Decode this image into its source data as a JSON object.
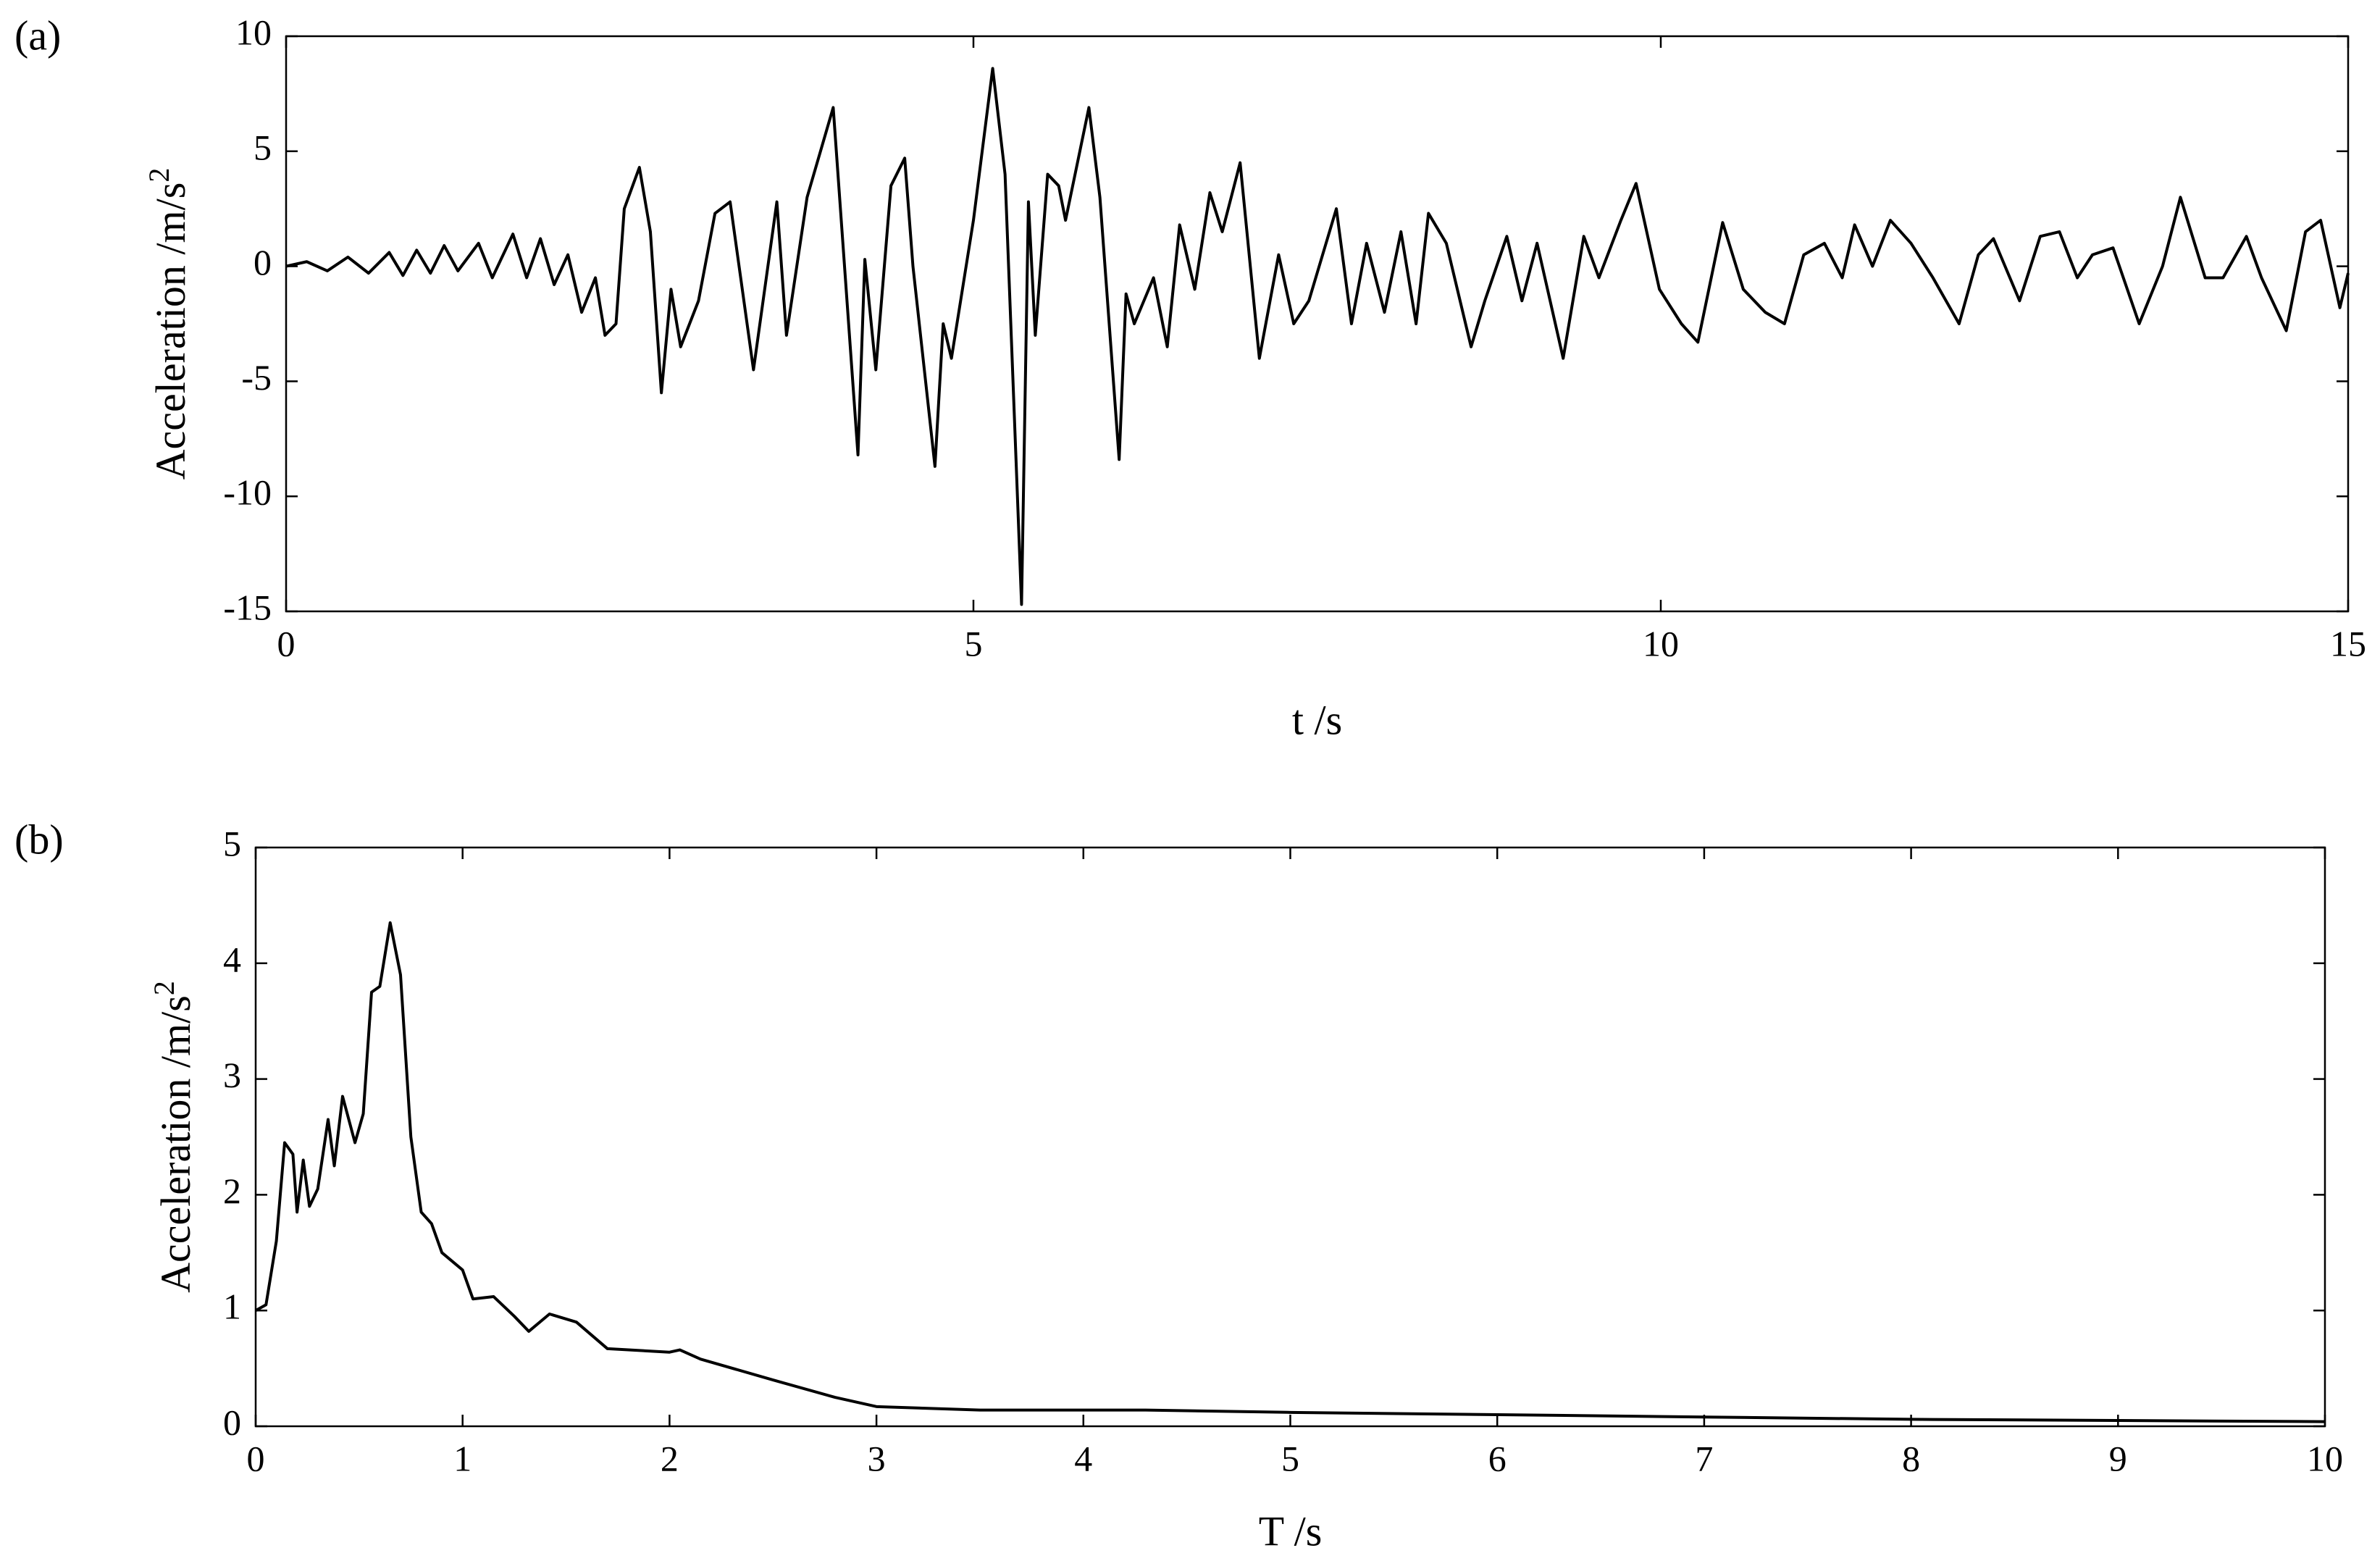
{
  "chart_data": [
    {
      "type": "line",
      "panel_label": "(a)",
      "xlabel": "t /s",
      "ylabel": "Acceleration /m/s",
      "ylabel_superscript": "2",
      "color": "#000000",
      "xlim": [
        0,
        15
      ],
      "xticks": [
        0,
        5,
        10,
        15
      ],
      "ylim": [
        -15,
        10
      ],
      "yticks": [
        -15,
        -10,
        -5,
        0,
        5,
        10
      ],
      "x": [
        0,
        0.15,
        0.3,
        0.45,
        0.6,
        0.75,
        0.85,
        0.95,
        1.05,
        1.15,
        1.25,
        1.4,
        1.5,
        1.65,
        1.75,
        1.85,
        1.95,
        2.05,
        2.15,
        2.25,
        2.32,
        2.4,
        2.46,
        2.57,
        2.65,
        2.73,
        2.8,
        2.87,
        3.0,
        3.12,
        3.23,
        3.4,
        3.57,
        3.64,
        3.79,
        3.98,
        4.16,
        4.21,
        4.29,
        4.4,
        4.5,
        4.56,
        4.72,
        4.78,
        4.84,
        5.0,
        5.14,
        5.23,
        5.32,
        5.35,
        5.4,
        5.45,
        5.54,
        5.62,
        5.67,
        5.84,
        5.92,
        6.06,
        6.11,
        6.17,
        6.31,
        6.41,
        6.5,
        6.61,
        6.72,
        6.81,
        6.94,
        7.08,
        7.22,
        7.33,
        7.44,
        7.64,
        7.75,
        7.86,
        7.99,
        8.11,
        8.22,
        8.31,
        8.44,
        8.62,
        8.72,
        8.88,
        8.99,
        9.1,
        9.29,
        9.44,
        9.55,
        9.71,
        9.82,
        9.99,
        10.15,
        10.27,
        10.45,
        10.6,
        10.76,
        10.9,
        11.04,
        11.19,
        11.32,
        11.41,
        11.54,
        11.67,
        11.82,
        11.98,
        12.17,
        12.31,
        12.42,
        12.61,
        12.76,
        12.9,
        13.03,
        13.14,
        13.29,
        13.48,
        13.65,
        13.78,
        13.96,
        14.09,
        14.26,
        14.37,
        14.55,
        14.69,
        14.8,
        14.94,
        15
      ],
      "values": [
        0,
        0.2,
        -0.2,
        0.4,
        -0.3,
        0.6,
        -0.4,
        0.7,
        -0.3,
        0.9,
        -0.2,
        1.0,
        -0.5,
        1.4,
        -0.5,
        1.2,
        -0.8,
        0.5,
        -2.0,
        -0.5,
        -3.0,
        -2.5,
        2.5,
        4.3,
        1.5,
        -5.5,
        -1.0,
        -3.5,
        -1.5,
        2.3,
        2.8,
        -4.5,
        2.8,
        -3.0,
        3.0,
        6.9,
        -8.2,
        0.3,
        -4.5,
        3.5,
        4.7,
        0,
        -8.7,
        -2.5,
        -4.0,
        2.0,
        8.6,
        4.0,
        -10.0,
        -14.7,
        2.8,
        -3.0,
        4.0,
        3.5,
        2.0,
        6.9,
        3.0,
        -8.4,
        -1.2,
        -2.5,
        -0.5,
        -3.5,
        1.8,
        -1.0,
        3.2,
        1.5,
        4.5,
        -4.0,
        0.5,
        -2.5,
        -1.5,
        2.5,
        -2.5,
        1.0,
        -2.0,
        1.5,
        -2.5,
        2.3,
        1.0,
        -3.5,
        -1.5,
        1.3,
        -1.5,
        1.0,
        -4.0,
        1.3,
        -0.5,
        2.0,
        3.6,
        -1.0,
        -2.5,
        -3.3,
        1.9,
        -1.0,
        -2.0,
        -2.5,
        0.5,
        1.0,
        -0.5,
        1.8,
        0,
        2.0,
        1.0,
        -0.5,
        -2.5,
        0.5,
        1.2,
        -1.5,
        1.3,
        1.5,
        -0.5,
        0.5,
        0.8,
        -2.5,
        0,
        3.0,
        -0.5,
        -0.5,
        1.3,
        -0.5,
        -2.8,
        1.5,
        2.0,
        -1.8,
        -0.3
      ]
    },
    {
      "type": "line",
      "panel_label": "(b)",
      "xlabel": "T /s",
      "ylabel": "Acceleration /m/s",
      "ylabel_superscript": "2",
      "color": "#000000",
      "xlim": [
        0,
        10
      ],
      "xticks": [
        0,
        1,
        2,
        3,
        4,
        5,
        6,
        7,
        8,
        9,
        10
      ],
      "ylim": [
        0,
        5
      ],
      "yticks": [
        0,
        1,
        2,
        3,
        4,
        5
      ],
      "x": [
        0,
        0.05,
        0.1,
        0.14,
        0.18,
        0.2,
        0.23,
        0.26,
        0.3,
        0.35,
        0.38,
        0.42,
        0.48,
        0.52,
        0.56,
        0.6,
        0.65,
        0.7,
        0.75,
        0.8,
        0.85,
        0.9,
        1.0,
        1.05,
        1.15,
        1.25,
        1.32,
        1.42,
        1.55,
        1.7,
        2.0,
        2.05,
        2.15,
        2.5,
        2.8,
        3.0,
        3.5,
        4.0,
        4.3,
        5.0,
        6.0,
        7.0,
        8.0,
        9.0,
        10.0
      ],
      "values": [
        1.0,
        1.05,
        1.6,
        2.45,
        2.35,
        1.85,
        2.3,
        1.9,
        2.05,
        2.65,
        2.25,
        2.85,
        2.45,
        2.7,
        3.75,
        3.8,
        4.35,
        3.9,
        2.5,
        1.85,
        1.75,
        1.5,
        1.35,
        1.1,
        1.12,
        0.95,
        0.82,
        0.97,
        0.9,
        0.67,
        0.64,
        0.66,
        0.58,
        0.4,
        0.25,
        0.17,
        0.14,
        0.14,
        0.14,
        0.12,
        0.1,
        0.08,
        0.06,
        0.05,
        0.04
      ]
    }
  ]
}
